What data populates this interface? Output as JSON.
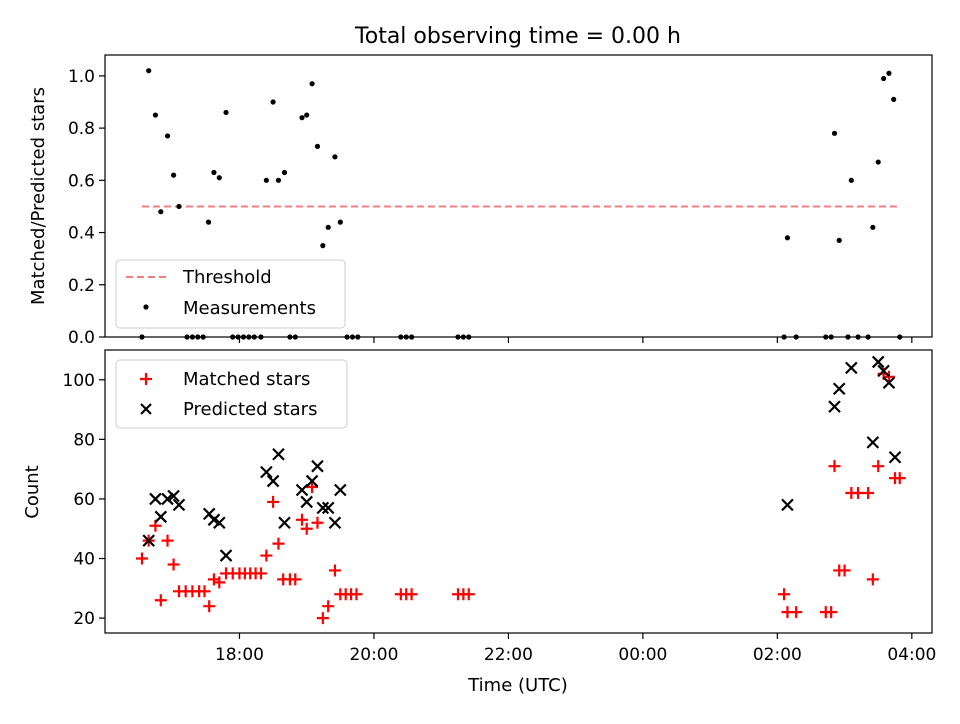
{
  "figure": {
    "title": "Total observing time = 0.00 h"
  },
  "chart_data": [
    {
      "type": "scatter",
      "panel": "top",
      "ylabel": "Matched/Predicted stars",
      "xlabel": "",
      "x_unit": "hours (UTC, after 24:00 continues as 24+)",
      "xlim": [
        16.0,
        28.3
      ],
      "ylim": [
        0.0,
        1.08
      ],
      "yticks": [
        0.0,
        0.2,
        0.4,
        0.6,
        0.8,
        1.0
      ],
      "ytick_labels": [
        "0.0",
        "0.2",
        "0.4",
        "0.6",
        "0.8",
        "1.0"
      ],
      "xticks": [
        18,
        20,
        22,
        24,
        26,
        28
      ],
      "xtick_labels": [
        "",
        "",
        "",
        "",
        "",
        ""
      ],
      "grid": false,
      "legend_position": "lower-left",
      "legend": [
        "Threshold",
        "Measurements"
      ],
      "threshold": {
        "name": "Threshold",
        "value": 0.5,
        "x": [
          16.55,
          27.8
        ],
        "color": "#f08080",
        "style": "dashed"
      },
      "series": [
        {
          "name": "Measurements",
          "color": "#000000",
          "points": [
            [
              16.55,
              0.0
            ],
            [
              16.65,
              1.02
            ],
            [
              16.75,
              0.85
            ],
            [
              16.83,
              0.48
            ],
            [
              16.93,
              0.77
            ],
            [
              17.02,
              0.62
            ],
            [
              17.1,
              0.5
            ],
            [
              17.22,
              0.0
            ],
            [
              17.3,
              0.0
            ],
            [
              17.38,
              0.0
            ],
            [
              17.46,
              0.0
            ],
            [
              17.54,
              0.44
            ],
            [
              17.62,
              0.63
            ],
            [
              17.7,
              0.61
            ],
            [
              17.8,
              0.86
            ],
            [
              17.9,
              0.0
            ],
            [
              17.98,
              0.0
            ],
            [
              18.06,
              0.0
            ],
            [
              18.14,
              0.0
            ],
            [
              18.22,
              0.0
            ],
            [
              18.32,
              0.0
            ],
            [
              18.4,
              0.6
            ],
            [
              18.5,
              0.9
            ],
            [
              18.58,
              0.6
            ],
            [
              18.67,
              0.63
            ],
            [
              18.75,
              0.0
            ],
            [
              18.83,
              0.0
            ],
            [
              18.93,
              0.84
            ],
            [
              19.0,
              0.85
            ],
            [
              19.08,
              0.97
            ],
            [
              19.16,
              0.73
            ],
            [
              19.24,
              0.35
            ],
            [
              19.32,
              0.42
            ],
            [
              19.42,
              0.69
            ],
            [
              19.5,
              0.44
            ],
            [
              19.6,
              0.0
            ],
            [
              19.68,
              0.0
            ],
            [
              19.76,
              0.0
            ],
            [
              20.4,
              0.0
            ],
            [
              20.48,
              0.0
            ],
            [
              20.56,
              0.0
            ],
            [
              21.25,
              0.0
            ],
            [
              21.33,
              0.0
            ],
            [
              21.41,
              0.0
            ],
            [
              26.1,
              0.0
            ],
            [
              26.15,
              0.38
            ],
            [
              26.28,
              0.0
            ],
            [
              26.72,
              0.0
            ],
            [
              26.8,
              0.0
            ],
            [
              26.85,
              0.78
            ],
            [
              26.92,
              0.37
            ],
            [
              27.05,
              0.0
            ],
            [
              27.1,
              0.6
            ],
            [
              27.2,
              0.0
            ],
            [
              27.35,
              0.0
            ],
            [
              27.42,
              0.42
            ],
            [
              27.5,
              0.67
            ],
            [
              27.58,
              0.99
            ],
            [
              27.66,
              1.01
            ],
            [
              27.73,
              0.91
            ],
            [
              27.82,
              0.0
            ]
          ]
        }
      ]
    },
    {
      "type": "scatter",
      "panel": "bottom",
      "ylabel": "Count",
      "xlabel": "Time (UTC)",
      "xlim": [
        16.0,
        28.3
      ],
      "ylim": [
        15.0,
        110.0
      ],
      "yticks": [
        20,
        40,
        60,
        80,
        100
      ],
      "ytick_labels": [
        "20",
        "40",
        "60",
        "80",
        "100"
      ],
      "xticks": [
        18,
        20,
        22,
        24,
        26,
        28
      ],
      "xtick_labels": [
        "18:00",
        "20:00",
        "22:00",
        "00:00",
        "02:00",
        "04:00"
      ],
      "grid": false,
      "legend_position": "top-left",
      "legend": [
        "Matched stars",
        "Predicted stars"
      ],
      "series": [
        {
          "name": "Matched stars",
          "marker": "plus",
          "color": "#ff0000",
          "points": [
            [
              16.55,
              40
            ],
            [
              16.65,
              46
            ],
            [
              16.75,
              51
            ],
            [
              16.83,
              26
            ],
            [
              16.93,
              46
            ],
            [
              17.02,
              38
            ],
            [
              17.1,
              29
            ],
            [
              17.2,
              29
            ],
            [
              17.3,
              29
            ],
            [
              17.4,
              29
            ],
            [
              17.48,
              29
            ],
            [
              17.55,
              24
            ],
            [
              17.62,
              33
            ],
            [
              17.7,
              32
            ],
            [
              17.8,
              35
            ],
            [
              17.9,
              35
            ],
            [
              18.0,
              35
            ],
            [
              18.08,
              35
            ],
            [
              18.16,
              35
            ],
            [
              18.24,
              35
            ],
            [
              18.32,
              35
            ],
            [
              18.4,
              41
            ],
            [
              18.5,
              59
            ],
            [
              18.58,
              45
            ],
            [
              18.65,
              33
            ],
            [
              18.75,
              33
            ],
            [
              18.83,
              33
            ],
            [
              18.93,
              53
            ],
            [
              19.0,
              50
            ],
            [
              19.08,
              64
            ],
            [
              19.16,
              52
            ],
            [
              19.24,
              20
            ],
            [
              19.32,
              24
            ],
            [
              19.42,
              36
            ],
            [
              19.5,
              28
            ],
            [
              19.58,
              28
            ],
            [
              19.66,
              28
            ],
            [
              19.74,
              28
            ],
            [
              20.4,
              28
            ],
            [
              20.48,
              28
            ],
            [
              20.56,
              28
            ],
            [
              21.25,
              28
            ],
            [
              21.33,
              28
            ],
            [
              21.41,
              28
            ],
            [
              26.1,
              28
            ],
            [
              26.15,
              22
            ],
            [
              26.28,
              22
            ],
            [
              26.72,
              22
            ],
            [
              26.8,
              22
            ],
            [
              26.85,
              71
            ],
            [
              26.92,
              36
            ],
            [
              27.0,
              36
            ],
            [
              27.1,
              62
            ],
            [
              27.2,
              62
            ],
            [
              27.35,
              62
            ],
            [
              27.42,
              33
            ],
            [
              27.5,
              71
            ],
            [
              27.58,
              102
            ],
            [
              27.66,
              101
            ],
            [
              27.75,
              67
            ],
            [
              27.82,
              67
            ]
          ]
        },
        {
          "name": "Predicted stars",
          "marker": "x",
          "color": "#000000",
          "points": [
            [
              16.65,
              46
            ],
            [
              16.75,
              60
            ],
            [
              16.83,
              54
            ],
            [
              16.93,
              60
            ],
            [
              17.02,
              61
            ],
            [
              17.1,
              58
            ],
            [
              17.55,
              55
            ],
            [
              17.62,
              53
            ],
            [
              17.7,
              52
            ],
            [
              17.8,
              41
            ],
            [
              18.4,
              69
            ],
            [
              18.5,
              66
            ],
            [
              18.58,
              75
            ],
            [
              18.67,
              52
            ],
            [
              18.93,
              63
            ],
            [
              19.0,
              59
            ],
            [
              19.08,
              66
            ],
            [
              19.16,
              71
            ],
            [
              19.24,
              57
            ],
            [
              19.32,
              57
            ],
            [
              19.42,
              52
            ],
            [
              19.5,
              63
            ],
            [
              26.15,
              58
            ],
            [
              26.85,
              91
            ],
            [
              26.92,
              97
            ],
            [
              27.1,
              104
            ],
            [
              27.42,
              79
            ],
            [
              27.5,
              106
            ],
            [
              27.58,
              103
            ],
            [
              27.66,
              99
            ],
            [
              27.75,
              74
            ]
          ]
        }
      ]
    }
  ]
}
